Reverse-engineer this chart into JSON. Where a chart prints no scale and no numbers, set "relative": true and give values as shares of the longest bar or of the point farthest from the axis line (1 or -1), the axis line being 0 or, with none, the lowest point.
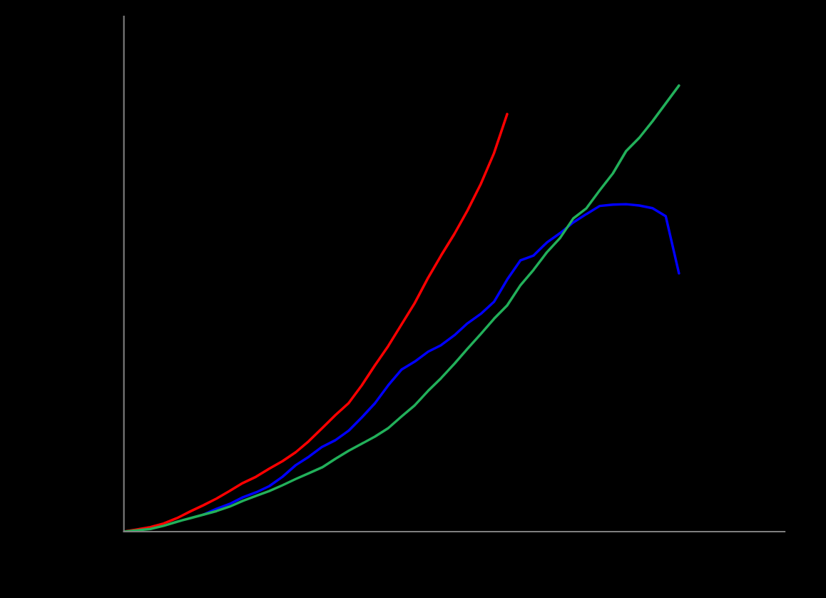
{
  "chart_data": {
    "type": "line",
    "relative": true,
    "categories": [
      null,
      null,
      null,
      null,
      null,
      null,
      null,
      null,
      null,
      null,
      null,
      null,
      null,
      null,
      null,
      null,
      null,
      null,
      null,
      null,
      null,
      null,
      null,
      null,
      null,
      null,
      null,
      null,
      null,
      null,
      null,
      null,
      null,
      null,
      null,
      null,
      null,
      null,
      null,
      null,
      null,
      null,
      null,
      null,
      null,
      null,
      null,
      null,
      null,
      null,
      null
    ],
    "series": [
      {
        "color": "#0000ff",
        "values": [
          null,
          null,
          null,
          null,
          null,
          null,
          0.038,
          0.051,
          0.062,
          0.077,
          0.088,
          0.102,
          0.123,
          0.149,
          0.168,
          0.19,
          0.205,
          0.226,
          0.256,
          0.288,
          0.328,
          0.363,
          0.381,
          0.403,
          0.418,
          0.44,
          0.467,
          0.488,
          0.515,
          0.565,
          0.608,
          0.619,
          0.648,
          0.669,
          0.693,
          0.712,
          0.73,
          0.733,
          0.734,
          0.731,
          0.725,
          0.707,
          0.579,
          null,
          null,
          null,
          null,
          null,
          null,
          null,
          null
        ]
      },
      {
        "color": "#ff0000",
        "values": [
          0,
          0.005,
          0.01,
          0.018,
          0.03,
          0.045,
          0.059,
          0.074,
          0.091,
          0.109,
          0.123,
          0.141,
          0.158,
          0.178,
          0.203,
          0.232,
          0.261,
          0.288,
          0.328,
          0.373,
          0.416,
          0.464,
          0.512,
          0.568,
          0.619,
          0.667,
          0.72,
          0.779,
          0.848,
          0.936,
          null,
          null,
          null,
          null,
          null,
          null,
          null,
          null,
          null,
          null,
          null,
          null,
          null,
          null,
          null,
          null,
          null,
          null,
          null,
          null,
          null
        ]
      },
      {
        "color": "#22b05a",
        "values": [
          0,
          0.003,
          0.006,
          0.013,
          0.022,
          0.03,
          0.038,
          0.046,
          0.056,
          0.069,
          0.08,
          0.091,
          0.104,
          0.118,
          0.131,
          0.144,
          0.163,
          0.181,
          0.197,
          0.213,
          0.232,
          0.258,
          0.283,
          0.315,
          0.344,
          0.376,
          0.41,
          0.443,
          0.477,
          0.507,
          0.552,
          0.587,
          0.626,
          0.658,
          0.702,
          0.725,
          0.765,
          0.803,
          0.853,
          0.883,
          0.92,
          0.96,
          1.0,
          null,
          null,
          null,
          null,
          null,
          null,
          null,
          null
        ]
      }
    ]
  }
}
